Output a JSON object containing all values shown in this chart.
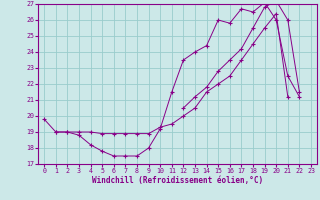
{
  "xlabel": "Windchill (Refroidissement éolien,°C)",
  "xlim": [
    -0.5,
    23.5
  ],
  "ylim": [
    17,
    27
  ],
  "yticks": [
    17,
    18,
    19,
    20,
    21,
    22,
    23,
    24,
    25,
    26,
    27
  ],
  "xticks": [
    0,
    1,
    2,
    3,
    4,
    5,
    6,
    7,
    8,
    9,
    10,
    11,
    12,
    13,
    14,
    15,
    16,
    17,
    18,
    19,
    20,
    21,
    22,
    23
  ],
  "bg_color": "#cce8e8",
  "line_color": "#880088",
  "grid_color": "#99cccc",
  "curve1_x": [
    0,
    1,
    2,
    3,
    4,
    5,
    6,
    7,
    8,
    9,
    10,
    11,
    12,
    13,
    14,
    15,
    16,
    17,
    18,
    19,
    20,
    21,
    22
  ],
  "curve1_y": [
    19.8,
    19.0,
    19.0,
    18.8,
    18.2,
    17.8,
    17.5,
    17.5,
    17.5,
    18.0,
    19.2,
    21.5,
    23.5,
    24.0,
    24.4,
    26.0,
    25.8,
    26.7,
    26.5,
    27.1,
    26.0,
    22.5,
    21.2
  ],
  "curve2_x": [
    1,
    2,
    3,
    4,
    5,
    6,
    7,
    8,
    9,
    10,
    11,
    12,
    13,
    14,
    15,
    16,
    17,
    18,
    19,
    20,
    21
  ],
  "curve2_y": [
    19.0,
    19.0,
    19.0,
    19.0,
    18.9,
    18.9,
    18.9,
    18.9,
    18.9,
    19.3,
    19.5,
    20.0,
    20.5,
    21.5,
    22.0,
    22.5,
    23.5,
    24.5,
    25.5,
    26.4,
    21.2
  ],
  "curve3_x": [
    12,
    13,
    14,
    15,
    16,
    17,
    18,
    19,
    20,
    21,
    22
  ],
  "curve3_y": [
    20.5,
    21.2,
    21.8,
    22.8,
    23.5,
    24.2,
    25.5,
    26.8,
    27.2,
    26.0,
    21.5
  ]
}
